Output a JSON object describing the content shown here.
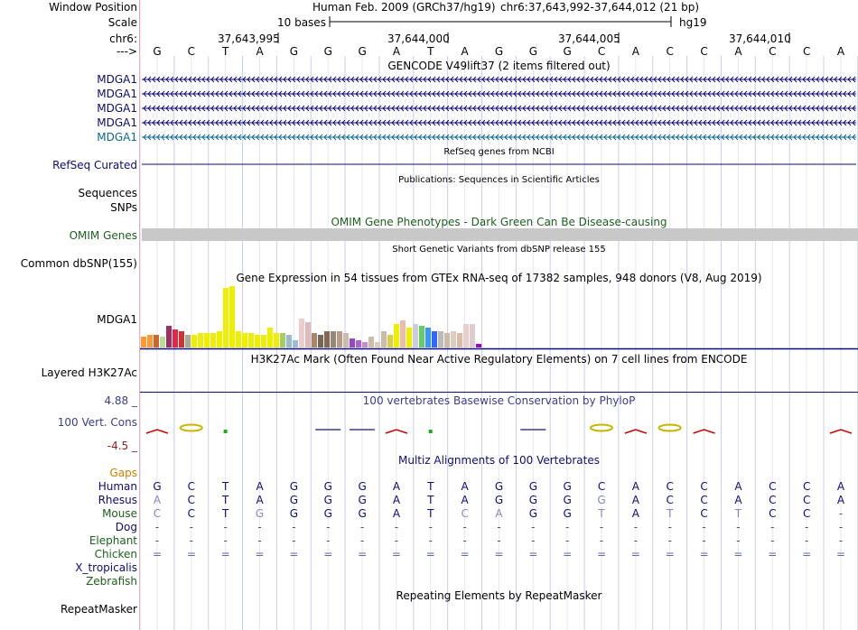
{
  "header": {
    "window_position_label": "Window Position",
    "assembly": "Human Feb. 2009 (GRCh37/hg19)",
    "position": "chr6:37,643,992-37,644,012 (21 bp)",
    "scale_label": "Scale",
    "scale_text": "10 bases",
    "scale_db": "hg19",
    "chrom_label": "chr6:",
    "strand_label": "--->",
    "coordinates": [
      "37,643,995",
      "37,644,000",
      "37,644,005",
      "37,644,010"
    ]
  },
  "reference_bases": [
    "G",
    "C",
    "T",
    "A",
    "G",
    "G",
    "G",
    "A",
    "T",
    "A",
    "G",
    "G",
    "G",
    "C",
    "A",
    "C",
    "C",
    "A",
    "C",
    "C",
    "A"
  ],
  "tracks": {
    "gencode": {
      "title": "GENCODE V49lift37 (2 items filtered out)",
      "labels": [
        "MDGA1",
        "MDGA1",
        "MDGA1",
        "MDGA1",
        "MDGA1"
      ],
      "colors": [
        "#0c0c78",
        "#0c0c78",
        "#0c0c78",
        "#0c0c78",
        "#0c6790"
      ]
    },
    "refseq": {
      "title": "RefSeq genes from NCBI",
      "label": "RefSeq Curated",
      "color": "#0c0c78"
    },
    "publications": {
      "title": "Publications: Sequences in Scientific Articles",
      "label_sequences": "Sequences",
      "label_snps": "SNPs"
    },
    "omim": {
      "title": "OMIM Gene Phenotypes - Dark Green Can Be Disease-causing",
      "label": "OMIM Genes",
      "color": "#1e601e",
      "bar_color": "#c8c8c8"
    },
    "dbsnp": {
      "title": "Short Genetic Variants from dbSNP release 155",
      "label": "Common dbSNP(155)"
    },
    "gtex": {
      "title": "Gene Expression in 54 tissues from GTEx RNA-seq of 17382 samples, 948 donors (V8, Aug 2019)",
      "label": "MDGA1",
      "bars": [
        {
          "v": 12,
          "c": "#ff9933"
        },
        {
          "v": 14,
          "c": "#ff9933"
        },
        {
          "v": 14,
          "c": "#cc6633"
        },
        {
          "v": 12,
          "c": "#bbdd99"
        },
        {
          "v": 24,
          "c": "#993366"
        },
        {
          "v": 20,
          "c": "#ee2244"
        },
        {
          "v": 18,
          "c": "#cc3333"
        },
        {
          "v": 14,
          "c": "#aaaa99"
        },
        {
          "v": 14,
          "c": "#eeee00"
        },
        {
          "v": 16,
          "c": "#eeee00"
        },
        {
          "v": 16,
          "c": "#eeee00"
        },
        {
          "v": 16,
          "c": "#eeee00"
        },
        {
          "v": 18,
          "c": "#eeee00"
        },
        {
          "v": 66,
          "c": "#eeee00"
        },
        {
          "v": 68,
          "c": "#eeee00"
        },
        {
          "v": 18,
          "c": "#eeee00"
        },
        {
          "v": 16,
          "c": "#eeee00"
        },
        {
          "v": 16,
          "c": "#eeee00"
        },
        {
          "v": 14,
          "c": "#eeee00"
        },
        {
          "v": 14,
          "c": "#eeee00"
        },
        {
          "v": 22,
          "c": "#eeee00"
        },
        {
          "v": 16,
          "c": "#eeee00"
        },
        {
          "v": 16,
          "c": "#aacc66"
        },
        {
          "v": 14,
          "c": "#99bbcc"
        },
        {
          "v": 8,
          "c": "#99bbdd"
        },
        {
          "v": 32,
          "c": "#eecccc"
        },
        {
          "v": 28,
          "c": "#ddbbbb"
        },
        {
          "v": 16,
          "c": "#aa8866"
        },
        {
          "v": 14,
          "c": "#776655"
        },
        {
          "v": 18,
          "c": "#886655"
        },
        {
          "v": 18,
          "c": "#998877"
        },
        {
          "v": 18,
          "c": "#bb9988"
        },
        {
          "v": 16,
          "c": "#ccbbaa"
        },
        {
          "v": 10,
          "c": "#9944cc"
        },
        {
          "v": 8,
          "c": "#aa66cc"
        },
        {
          "v": 6,
          "c": "#cc88cc"
        },
        {
          "v": 12,
          "c": "#ccbbaa"
        },
        {
          "v": 6,
          "c": "#ddccbb"
        },
        {
          "v": 18,
          "c": "#ccbbaa"
        },
        {
          "v": 14,
          "c": "#ddcc44"
        },
        {
          "v": 26,
          "c": "#eeee00"
        },
        {
          "v": 30,
          "c": "#eebbaa"
        },
        {
          "v": 22,
          "c": "#eeee00"
        },
        {
          "v": 26,
          "c": "#ccccdd"
        },
        {
          "v": 24,
          "c": "#66cc66"
        },
        {
          "v": 22,
          "c": "#3399ff"
        },
        {
          "v": 18,
          "c": "#3366ff"
        },
        {
          "v": 18,
          "c": "#bbbbbb"
        },
        {
          "v": 16,
          "c": "#ccbbaa"
        },
        {
          "v": 18,
          "c": "#ddccbb"
        },
        {
          "v": 16,
          "c": "#ddbbaa"
        },
        {
          "v": 26,
          "c": "#eecccc"
        },
        {
          "v": 26,
          "c": "#ddcccc"
        },
        {
          "v": 4,
          "c": "#9900cc"
        }
      ]
    },
    "h3k27ac": {
      "title": "H3K27Ac Mark (Often Found Near Active Regulatory Elements) on 7 cell lines from ENCODE",
      "label": "Layered H3K27Ac"
    },
    "conservation": {
      "title": "100 vertebrates Basewise Conservation by PhyloP",
      "label": "100 Vert. Cons",
      "max": "4.88 _",
      "min": "-4.5 _",
      "color_pos": "#3d3d8c",
      "color_neg": "#8c1c1c"
    },
    "multiz": {
      "title": "Multiz Alignments of 100 Vertebrates",
      "gaps_label": "Gaps",
      "species": [
        {
          "name": "Human",
          "color": "#0c0c78",
          "bases": [
            "G",
            "C",
            "T",
            "A",
            "G",
            "G",
            "G",
            "A",
            "T",
            "A",
            "G",
            "G",
            "G",
            "C",
            "A",
            "C",
            "C",
            "A",
            "C",
            "C",
            "A"
          ]
        },
        {
          "name": "Rhesus",
          "color": "#0c0c78",
          "bases": [
            "A",
            "C",
            "T",
            "A",
            "G",
            "G",
            "G",
            "A",
            "T",
            "A",
            "G",
            "G",
            "G",
            "G",
            "A",
            "C",
            "C",
            "A",
            "C",
            "C",
            "A"
          ]
        },
        {
          "name": "Mouse",
          "color": "#1e601e",
          "bases": [
            "C",
            "C",
            "T",
            "G",
            "G",
            "G",
            "G",
            "A",
            "T",
            "C",
            "A",
            "G",
            "G",
            "T",
            "A",
            "T",
            "C",
            "T",
            "C",
            "C",
            "-"
          ]
        },
        {
          "name": "Dog",
          "color": "#0c0c78",
          "bases": [
            "-",
            "-",
            "-",
            "-",
            "-",
            "-",
            "-",
            "-",
            "-",
            "-",
            "-",
            "-",
            "-",
            "-",
            "-",
            "-",
            "-",
            "-",
            "-",
            "-",
            "-"
          ]
        },
        {
          "name": "Elephant",
          "color": "#1e601e",
          "bases": [
            "-",
            "-",
            "-",
            "-",
            "-",
            "-",
            "-",
            "-",
            "-",
            "-",
            "-",
            "-",
            "-",
            "-",
            "-",
            "-",
            "-",
            "-",
            "-",
            "-",
            "-"
          ]
        },
        {
          "name": "Chicken",
          "color": "#1e601e",
          "bases": [
            "=",
            "=",
            "=",
            "=",
            "=",
            "=",
            "=",
            "=",
            "=",
            "=",
            "=",
            "=",
            "=",
            "=",
            "=",
            "=",
            "=",
            "=",
            "=",
            "=",
            "="
          ]
        },
        {
          "name": "X_tropicalis",
          "color": "#0c0c78",
          "bases": []
        },
        {
          "name": "Zebrafish",
          "color": "#1e601e",
          "bases": []
        }
      ]
    },
    "repeatmasker": {
      "title": "Repeating Elements by RepeatMasker",
      "label": "RepeatMasker"
    }
  }
}
